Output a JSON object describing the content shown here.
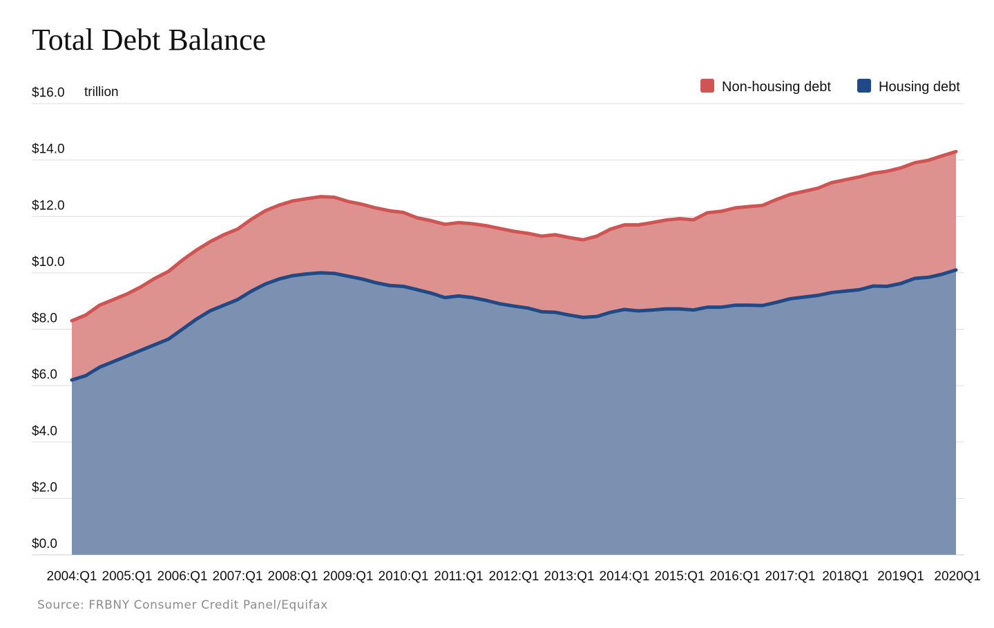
{
  "title": "Total Debt Balance",
  "source": "Source: FRBNY Consumer Credit Panel/Equifax",
  "colors": {
    "housing_fill": "#7c91b1",
    "housing_line": "#1f4a86",
    "nonhousing_fill": "#dd928f",
    "nonhousing_line": "#cf5454",
    "grid": "#dddddd",
    "baseline": "#cccccc"
  },
  "chart_data": {
    "type": "area",
    "stacked": true,
    "ylabel_unit": "trillion",
    "ylim": [
      0,
      16
    ],
    "y_ticks": [
      "$0.0",
      "$2.0",
      "$4.0",
      "$6.0",
      "$8.0",
      "$10.0",
      "$12.0",
      "$14.0",
      "$16.0"
    ],
    "x_tick_labels": [
      "2004:Q1",
      "2005:Q1",
      "2006:Q1",
      "2007:Q1",
      "2008:Q1",
      "2009:Q1",
      "2010:Q1",
      "2011:Q1",
      "2012:Q1",
      "2013:Q1",
      "2014:Q1",
      "2015:Q1",
      "2016:Q1",
      "2017:Q1",
      "2018Q1",
      "2019Q1",
      "2020Q1"
    ],
    "x_start": "2004:Q1",
    "x_end": "2020:Q1",
    "legend": [
      "Non-housing debt",
      "Housing debt"
    ],
    "legend_position": "top-right",
    "grid": true,
    "series": [
      {
        "name": "Housing debt",
        "values": [
          6.2,
          6.35,
          6.65,
          6.85,
          7.05,
          7.25,
          7.45,
          7.65,
          8.0,
          8.35,
          8.65,
          8.85,
          9.05,
          9.35,
          9.6,
          9.78,
          9.9,
          9.96,
          10.0,
          9.98,
          9.88,
          9.78,
          9.65,
          9.55,
          9.52,
          9.4,
          9.28,
          9.12,
          9.18,
          9.12,
          9.02,
          8.9,
          8.82,
          8.75,
          8.62,
          8.6,
          8.5,
          8.42,
          8.45,
          8.6,
          8.7,
          8.65,
          8.68,
          8.72,
          8.72,
          8.68,
          8.78,
          8.78,
          8.85,
          8.85,
          8.84,
          8.95,
          9.08,
          9.14,
          9.2,
          9.3,
          9.35,
          9.4,
          9.53,
          9.52,
          9.62,
          9.8,
          9.84,
          9.95,
          10.1
        ]
      },
      {
        "name": "Non-housing debt",
        "values": [
          2.1,
          2.15,
          2.2,
          2.2,
          2.2,
          2.25,
          2.35,
          2.4,
          2.45,
          2.45,
          2.45,
          2.5,
          2.5,
          2.55,
          2.6,
          2.62,
          2.65,
          2.67,
          2.7,
          2.7,
          2.65,
          2.65,
          2.65,
          2.65,
          2.62,
          2.55,
          2.57,
          2.6,
          2.6,
          2.62,
          2.65,
          2.67,
          2.65,
          2.65,
          2.68,
          2.75,
          2.75,
          2.75,
          2.85,
          2.95,
          3.0,
          3.05,
          3.1,
          3.15,
          3.2,
          3.2,
          3.35,
          3.4,
          3.45,
          3.5,
          3.55,
          3.65,
          3.7,
          3.75,
          3.8,
          3.9,
          3.95,
          4.0,
          4.0,
          4.08,
          4.1,
          4.1,
          4.15,
          4.2,
          4.2
        ]
      }
    ]
  }
}
